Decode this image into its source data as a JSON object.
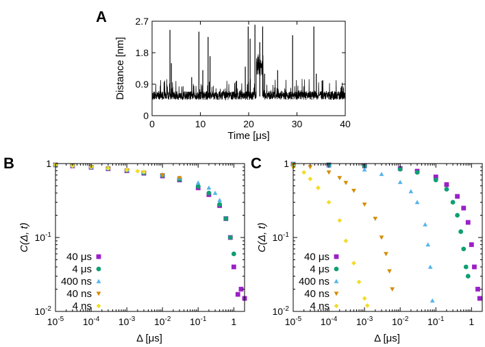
{
  "colors": {
    "40us": "#9b1fc7",
    "4us": "#109e73",
    "400ns": "#56b4e9",
    "40ns": "#d48c00",
    "4ns": "#f2dc28",
    "trace": "#000000"
  },
  "chart_data": [
    {
      "id": "A",
      "letter": "A",
      "type": "line",
      "xlabel": "Time [μs]",
      "ylabel": "Distance [nm]",
      "xlim": [
        0,
        40
      ],
      "ylim": [
        0,
        2.7
      ],
      "xticks": [
        0,
        10,
        20,
        30,
        40
      ],
      "xtick_labels": [
        "0",
        "10",
        "20",
        "30",
        "40"
      ],
      "yticks": [
        0,
        0.9,
        1.8,
        2.7
      ],
      "ytick_labels": [
        "0",
        "0.9",
        "1.8",
        "2.7"
      ],
      "baseline_range": [
        0.45,
        0.7
      ],
      "spikes": [
        {
          "x": 3.7,
          "y": 2.45
        },
        {
          "x": 4.0,
          "y": 1.5
        },
        {
          "x": 8.2,
          "y": 1.1
        },
        {
          "x": 9.7,
          "y": 2.4
        },
        {
          "x": 10.5,
          "y": 1.3
        },
        {
          "x": 11.6,
          "y": 2.25
        },
        {
          "x": 12.0,
          "y": 1.7
        },
        {
          "x": 17.5,
          "y": 1.0
        },
        {
          "x": 19.3,
          "y": 1.4
        },
        {
          "x": 19.9,
          "y": 2.55
        },
        {
          "x": 20.3,
          "y": 2.2
        },
        {
          "x": 21.3,
          "y": 2.6
        },
        {
          "x": 22.3,
          "y": 2.1
        },
        {
          "x": 22.9,
          "y": 2.55
        },
        {
          "x": 23.3,
          "y": 1.2
        },
        {
          "x": 26.0,
          "y": 1.3
        },
        {
          "x": 29.1,
          "y": 2.3
        },
        {
          "x": 33.5,
          "y": 2.55
        },
        {
          "x": 34.0,
          "y": 1.2
        },
        {
          "x": 35.2,
          "y": 1.0
        }
      ],
      "elevated_segment": {
        "x": [
          21.6,
          23.0
        ],
        "y": [
          1.1,
          1.8
        ]
      }
    },
    {
      "id": "B",
      "letter": "B",
      "type": "scatter",
      "xlabel": "Δ [μs]",
      "ylabel": "C(Δ, t)",
      "xscale": "log",
      "yscale": "log",
      "xlim": [
        1e-05,
        2
      ],
      "ylim": [
        0.01,
        1
      ],
      "xtick_labels": [
        "10-5",
        "10-4",
        "10-3",
        "10-2",
        "10-1",
        "1"
      ],
      "ytick_labels": [
        "10-2",
        "10-1",
        "1"
      ],
      "legend": [
        "40 μs",
        "4 μs",
        "400 ns",
        "40 ns",
        "4 ns"
      ],
      "legend_position": "lower-left",
      "series": [
        {
          "name": "40 μs",
          "color_key": "40us",
          "marker": "square",
          "points": [
            [
              1e-05,
              0.96
            ],
            [
              3e-05,
              0.93
            ],
            [
              0.0001,
              0.89
            ],
            [
              0.0003,
              0.85
            ],
            [
              0.001,
              0.8
            ],
            [
              0.003,
              0.74
            ],
            [
              0.01,
              0.68
            ],
            [
              0.03,
              0.6
            ],
            [
              0.1,
              0.47
            ],
            [
              0.2,
              0.38
            ],
            [
              0.4,
              0.27
            ],
            [
              0.6,
              0.18
            ],
            [
              0.8,
              0.1
            ],
            [
              1.0,
              0.04
            ],
            [
              1.3,
              0.017
            ],
            [
              1.6,
              0.02
            ],
            [
              2.0,
              0.015
            ]
          ]
        },
        {
          "name": "4 μs",
          "color_key": "4us",
          "marker": "circle",
          "points": [
            [
              1e-05,
              0.96
            ],
            [
              3e-05,
              0.94
            ],
            [
              0.0001,
              0.9
            ],
            [
              0.0003,
              0.86
            ],
            [
              0.001,
              0.81
            ],
            [
              0.003,
              0.75
            ],
            [
              0.01,
              0.69
            ],
            [
              0.03,
              0.61
            ],
            [
              0.1,
              0.49
            ],
            [
              0.2,
              0.4
            ],
            [
              0.4,
              0.28
            ],
            [
              0.6,
              0.18
            ],
            [
              0.8,
              0.1
            ],
            [
              1.0,
              0.06
            ]
          ]
        },
        {
          "name": "400 ns",
          "color_key": "400ns",
          "marker": "triangle-up",
          "points": [
            [
              1e-05,
              0.96
            ],
            [
              3e-05,
              0.94
            ],
            [
              0.0001,
              0.9
            ],
            [
              0.0003,
              0.86
            ],
            [
              0.001,
              0.82
            ],
            [
              0.003,
              0.77
            ],
            [
              0.01,
              0.71
            ],
            [
              0.03,
              0.64
            ],
            [
              0.1,
              0.55
            ],
            [
              0.2,
              0.47
            ],
            [
              0.3,
              0.4
            ],
            [
              0.4,
              0.32
            ]
          ]
        },
        {
          "name": "40 ns",
          "color_key": "40ns",
          "marker": "triangle-down",
          "points": [
            [
              1e-05,
              0.96
            ],
            [
              3e-05,
              0.93
            ],
            [
              0.0001,
              0.9
            ],
            [
              0.0003,
              0.86
            ],
            [
              0.001,
              0.81
            ],
            [
              0.003,
              0.76
            ],
            [
              0.01,
              0.7
            ],
            [
              0.03,
              0.64
            ]
          ]
        },
        {
          "name": "4 ns",
          "color_key": "4ns",
          "marker": "diamond",
          "points": [
            [
              1e-05,
              0.96
            ],
            [
              3e-05,
              0.93
            ],
            [
              0.0001,
              0.9
            ],
            [
              0.0003,
              0.86
            ],
            [
              0.001,
              0.82
            ],
            [
              0.002,
              0.79
            ],
            [
              0.003,
              0.77
            ]
          ]
        }
      ]
    },
    {
      "id": "C",
      "letter": "C",
      "type": "scatter",
      "xlabel": "Δ [μs]",
      "ylabel": "C(Δ, t)",
      "xscale": "log",
      "yscale": "log",
      "xlim": [
        1e-05,
        2
      ],
      "ylim": [
        0.01,
        1
      ],
      "xtick_labels": [
        "10-5",
        "10-4",
        "10-3",
        "10-2",
        "10-1",
        "1"
      ],
      "ytick_labels": [
        "10-2",
        "10-1",
        "1"
      ],
      "legend": [
        "40 μs",
        "4 μs",
        "400 ns",
        "40 ns",
        "4 ns"
      ],
      "legend_position": "lower-left",
      "series": [
        {
          "name": "40 μs",
          "color_key": "40us",
          "marker": "square",
          "points": [
            [
              1e-05,
              0.98
            ],
            [
              0.0001,
              0.96
            ],
            [
              0.001,
              0.93
            ],
            [
              0.01,
              0.86
            ],
            [
              0.03,
              0.79
            ],
            [
              0.1,
              0.66
            ],
            [
              0.2,
              0.52
            ],
            [
              0.4,
              0.36
            ],
            [
              0.6,
              0.25
            ],
            [
              0.8,
              0.16
            ],
            [
              1.0,
              0.08
            ],
            [
              1.2,
              0.04
            ],
            [
              1.5,
              0.02
            ],
            [
              1.7,
              0.015
            ]
          ]
        },
        {
          "name": "4 μs",
          "color_key": "4us",
          "marker": "circle",
          "points": [
            [
              1e-05,
              0.98
            ],
            [
              0.0001,
              0.96
            ],
            [
              0.001,
              0.92
            ],
            [
              0.01,
              0.84
            ],
            [
              0.03,
              0.76
            ],
            [
              0.1,
              0.6
            ],
            [
              0.2,
              0.45
            ],
            [
              0.3,
              0.3
            ],
            [
              0.4,
              0.2
            ],
            [
              0.5,
              0.12
            ],
            [
              0.6,
              0.07
            ],
            [
              0.7,
              0.04
            ],
            [
              0.8,
              0.03
            ]
          ]
        },
        {
          "name": "400 ns",
          "color_key": "400ns",
          "marker": "triangle-up",
          "points": [
            [
              1e-05,
              0.97
            ],
            [
              0.0001,
              0.93
            ],
            [
              0.001,
              0.83
            ],
            [
              0.003,
              0.72
            ],
            [
              0.01,
              0.56
            ],
            [
              0.02,
              0.42
            ],
            [
              0.03,
              0.3
            ],
            [
              0.05,
              0.15
            ],
            [
              0.06,
              0.08
            ],
            [
              0.07,
              0.04
            ],
            [
              0.08,
              0.014
            ]
          ]
        },
        {
          "name": "40 ns",
          "color_key": "40ns",
          "marker": "triangle-down",
          "points": [
            [
              1e-05,
              0.96
            ],
            [
              3e-05,
              0.9
            ],
            [
              0.0001,
              0.76
            ],
            [
              0.0002,
              0.64
            ],
            [
              0.0003,
              0.55
            ],
            [
              0.0005,
              0.43
            ],
            [
              0.001,
              0.28
            ],
            [
              0.002,
              0.18
            ],
            [
              0.003,
              0.1
            ],
            [
              0.004,
              0.06
            ],
            [
              0.005,
              0.035
            ],
            [
              0.006,
              0.02
            ]
          ]
        },
        {
          "name": "4 ns",
          "color_key": "4ns",
          "marker": "diamond",
          "points": [
            [
              1e-05,
              0.9
            ],
            [
              2e-05,
              0.76
            ],
            [
              3e-05,
              0.62
            ],
            [
              5e-05,
              0.47
            ],
            [
              0.0001,
              0.3
            ],
            [
              0.0002,
              0.17
            ],
            [
              0.0003,
              0.09
            ],
            [
              0.0005,
              0.045
            ],
            [
              0.0007,
              0.025
            ],
            [
              0.001,
              0.015
            ],
            [
              0.0012,
              0.012
            ]
          ]
        }
      ]
    }
  ]
}
